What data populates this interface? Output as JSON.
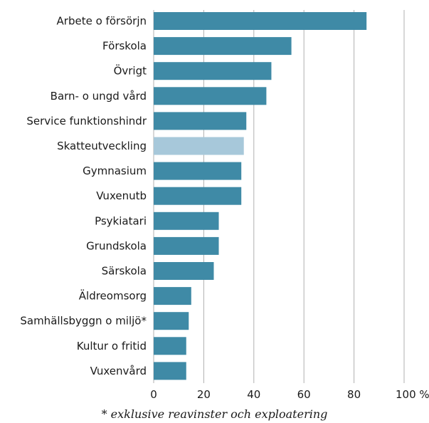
{
  "chart_data": {
    "type": "bar",
    "orientation": "horizontal",
    "categories": [
      "Arbete o försörjn",
      "Förskola",
      "Övrigt",
      "Barn- o ungd vård",
      "Service funktionshindr",
      "Skatteutveckling",
      "Gymnasium",
      "Vuxenutb",
      "Psykiatari",
      "Grundskola",
      "Särskola",
      "Äldreomsorg",
      "Samhällsbyggn o miljö*",
      "Kultur o fritid",
      "Vuxenvård"
    ],
    "values": [
      85,
      55,
      47,
      45,
      37,
      36,
      35,
      35,
      26,
      26,
      24,
      15,
      14,
      13,
      13
    ],
    "highlight": "Skatteutveckling",
    "xlim": [
      0,
      100
    ],
    "xticks": [
      0,
      20,
      40,
      60,
      80,
      100
    ],
    "xtick_labels": [
      "0",
      "20",
      "40",
      "60",
      "80",
      "100 %"
    ],
    "grid": "vertical",
    "colors": {
      "bar": "#3f8aa6",
      "highlight": "#a7c8da",
      "grid": "#b0b0b0"
    }
  },
  "footnote": "* exklusive reavinster och exploatering"
}
